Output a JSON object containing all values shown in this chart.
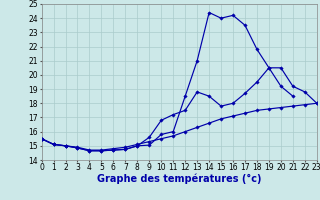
{
  "bg_color": "#cce8e8",
  "grid_color": "#aacccc",
  "line_color": "#0000aa",
  "x_min": 0,
  "x_max": 23,
  "y_min": 14,
  "y_max": 25,
  "series": [
    {
      "name": "line1_peak",
      "x": [
        0,
        1,
        2,
        3,
        4,
        5,
        6,
        7,
        8,
        9,
        10,
        11,
        12,
        13,
        14,
        15,
        16,
        17,
        18,
        19,
        20,
        21
      ],
      "y": [
        15.5,
        15.1,
        15.0,
        14.85,
        14.65,
        14.65,
        14.7,
        14.75,
        15.0,
        15.05,
        15.8,
        16.0,
        18.5,
        21.0,
        24.4,
        24.0,
        24.2,
        23.5,
        21.8,
        20.5,
        19.2,
        18.5
      ]
    },
    {
      "name": "line2_mid",
      "x": [
        0,
        1,
        2,
        3,
        4,
        5,
        6,
        7,
        8,
        9,
        10,
        11,
        12,
        13,
        14,
        15,
        16,
        17,
        18,
        19,
        20,
        21,
        22,
        23
      ],
      "y": [
        15.5,
        15.1,
        15.0,
        14.85,
        14.65,
        14.65,
        14.7,
        14.75,
        15.0,
        15.6,
        16.8,
        17.2,
        17.5,
        18.8,
        18.5,
        17.8,
        18.0,
        18.7,
        19.5,
        20.5,
        20.5,
        19.2,
        18.8,
        18.0
      ]
    },
    {
      "name": "line3_steady",
      "x": [
        0,
        1,
        2,
        3,
        4,
        5,
        6,
        7,
        8,
        9,
        10,
        11,
        12,
        13,
        14,
        15,
        16,
        17,
        18,
        19,
        20,
        21,
        22,
        23
      ],
      "y": [
        15.5,
        15.1,
        15.0,
        14.9,
        14.7,
        14.7,
        14.8,
        14.9,
        15.1,
        15.3,
        15.5,
        15.7,
        16.0,
        16.3,
        16.6,
        16.9,
        17.1,
        17.3,
        17.5,
        17.6,
        17.7,
        17.8,
        17.9,
        18.0
      ]
    }
  ],
  "xticks": [
    0,
    1,
    2,
    3,
    4,
    5,
    6,
    7,
    8,
    9,
    10,
    11,
    12,
    13,
    14,
    15,
    16,
    17,
    18,
    19,
    20,
    21,
    22,
    23
  ],
  "yticks": [
    14,
    15,
    16,
    17,
    18,
    19,
    20,
    21,
    22,
    23,
    24,
    25
  ],
  "xlabel": "Graphe des températures (°c)",
  "xlabel_fontsize": 7,
  "tick_fontsize": 5.5,
  "marker_size": 1.8,
  "linewidth": 0.85
}
